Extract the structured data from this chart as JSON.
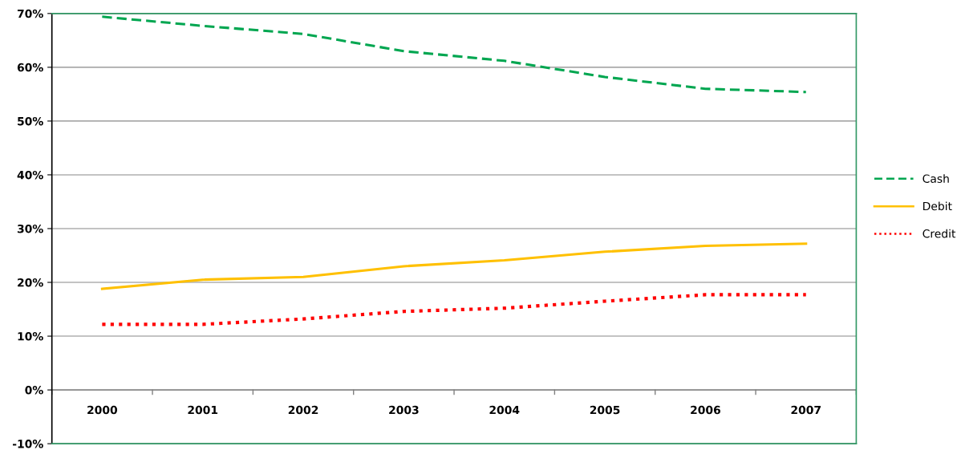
{
  "chart_data": {
    "type": "line",
    "categories": [
      "2000",
      "2001",
      "2002",
      "2003",
      "2004",
      "2005",
      "2006",
      "2007"
    ],
    "series": [
      {
        "name": "Cash",
        "color": "#00a650",
        "line_style": "dashed",
        "values": [
          69.4,
          67.7,
          66.2,
          63,
          61.2,
          58.2,
          56,
          55.4
        ]
      },
      {
        "name": "Debit",
        "color": "#ffc000",
        "line_style": "solid",
        "values": [
          18.8,
          20.5,
          21,
          23,
          24.1,
          25.7,
          26.8,
          27.2
        ]
      },
      {
        "name": "Credit",
        "color": "#ff0000",
        "line_style": "dotted",
        "values": [
          12.2,
          12.2,
          13.2,
          14.6,
          15.2,
          16.5,
          17.7,
          17.7
        ]
      }
    ],
    "ylim": [
      -10,
      70
    ],
    "yticks": [
      {
        "value": -10,
        "label": "-10%"
      },
      {
        "value": 0,
        "label": "0%"
      },
      {
        "value": 10,
        "label": "10%"
      },
      {
        "value": 20,
        "label": "20%"
      },
      {
        "value": 30,
        "label": "30%"
      },
      {
        "value": 40,
        "label": "40%"
      },
      {
        "value": 50,
        "label": "50%"
      },
      {
        "value": 60,
        "label": "60%"
      },
      {
        "value": 70,
        "label": "70%"
      }
    ],
    "grid": "y",
    "legend": "right",
    "marker": "none"
  }
}
